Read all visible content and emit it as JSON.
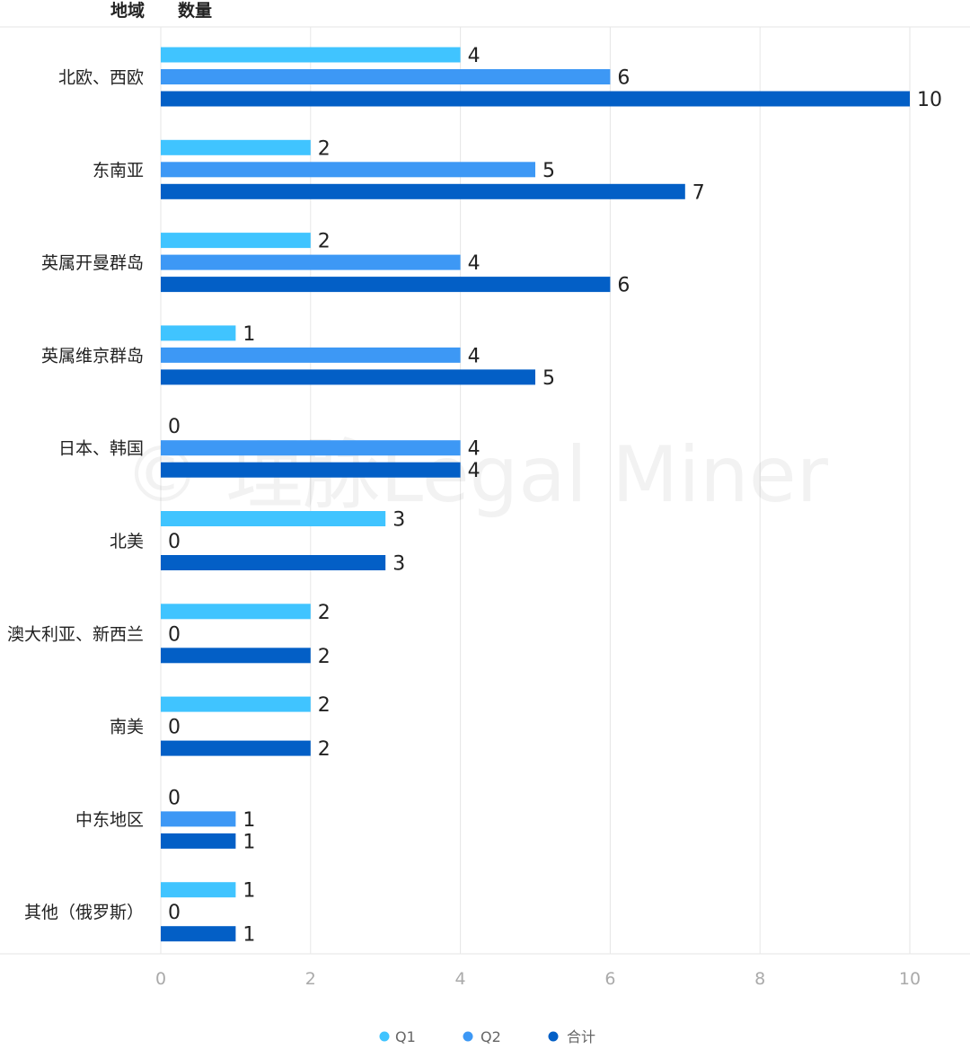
{
  "header": {
    "col_region": "地域",
    "col_count": "数量"
  },
  "watermark": "© 理脉Legal Miner",
  "chart_data": {
    "type": "bar",
    "orientation": "horizontal",
    "categories": [
      "北欧、西欧",
      "东南亚",
      "英属开曼群岛",
      "英属维京群岛",
      "日本、韩国",
      "北美",
      "澳大利亚、新西兰",
      "南美",
      "中东地区",
      "其他（俄罗斯）"
    ],
    "series": [
      {
        "name": "Q1",
        "color": "#40c4ff",
        "values": [
          4,
          2,
          2,
          1,
          0,
          3,
          2,
          2,
          0,
          1
        ]
      },
      {
        "name": "Q2",
        "color": "#3d98f5",
        "values": [
          6,
          5,
          4,
          4,
          4,
          0,
          0,
          0,
          1,
          0
        ]
      },
      {
        "name": "合计",
        "color": "#035fc6",
        "values": [
          10,
          7,
          6,
          5,
          4,
          3,
          2,
          2,
          1,
          1
        ]
      }
    ],
    "xlim": [
      0,
      10
    ],
    "xticks": [
      "0",
      "2",
      "4",
      "6",
      "8",
      "10"
    ],
    "grid": true,
    "legend_position": "bottom"
  }
}
